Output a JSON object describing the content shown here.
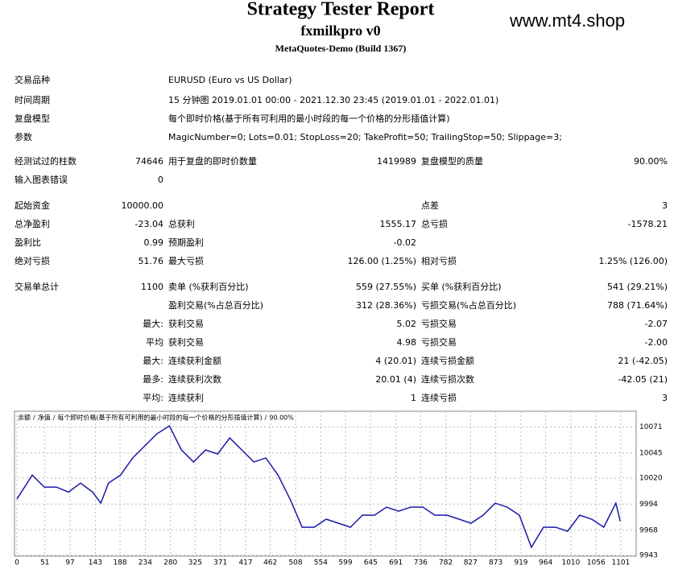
{
  "header": {
    "title": "Strategy Tester Report",
    "subtitle": "fxmilkpro v0",
    "build": "MetaQuotes-Demo (Build 1367)",
    "watermark": "www.mt4.shop"
  },
  "summary": {
    "rows": [
      {
        "label": "交易品种",
        "text": "EURUSD (Euro vs US Dollar)"
      },
      {
        "label": "时间周期",
        "text": "15 分钟图 2019.01.01 00:00 - 2021.12.30 23:45 (2019.01.01 - 2022.01.01)"
      },
      {
        "label": "复盘模型",
        "text": "每个即时价格(基于所有可利用的最小时段的每一个价格的分形插值计算)"
      },
      {
        "label": "参数",
        "text": "MagicNumber=0; Lots=0.01; StopLoss=20; TakeProfit=50; TrailingStop=50; Slippage=3;"
      }
    ]
  },
  "stats": {
    "rows": [
      [
        "经测试过的柱数",
        "74646",
        "用于复盘的即时价数量",
        "1419989",
        "复盘模型的质量",
        "90.00%"
      ],
      [
        "输入图表错误",
        "0",
        null,
        null,
        null,
        null
      ],
      [
        "起始资金",
        "10000.00",
        null,
        null,
        "点差",
        "3"
      ],
      [
        "总净盈利",
        "-23.04",
        "总获利",
        "1555.17",
        "总亏损",
        "-1578.21"
      ],
      [
        "盈利比",
        "0.99",
        "预期盈利",
        "-0.02",
        null,
        null
      ],
      [
        "绝对亏损",
        "51.76",
        "最大亏损",
        "126.00 (1.25%)",
        "相对亏损",
        "1.25% (126.00)"
      ],
      [
        "交易单总计",
        "1100",
        "卖单 (%获利百分比)",
        "559 (27.55%)",
        "买单 (%获利百分比)",
        "541 (29.21%)"
      ],
      [
        null,
        null,
        "盈利交易(%占总百分比)",
        "312 (28.36%)",
        "亏损交易(%占总百分比)",
        "788 (71.64%)"
      ],
      [
        null,
        "最大:",
        "获利交易",
        "5.02",
        "亏损交易",
        "-2.07"
      ],
      [
        null,
        "平均",
        "获利交易",
        "4.98",
        "亏损交易",
        "-2.00"
      ],
      [
        null,
        "最大:",
        "连续获利金额",
        "4 (20.01)",
        "连续亏损金额",
        "21 (-42.05)"
      ],
      [
        null,
        "最多:",
        "连续获利次数",
        "20.01 (4)",
        "连续亏损次数",
        "-42.05 (21)"
      ],
      [
        null,
        "平均:",
        "连续获利",
        "1",
        "连续亏损",
        "3"
      ]
    ]
  },
  "chart_data": {
    "type": "line",
    "legend": [
      {
        "text": "余额",
        "color": "#1f3fbf"
      },
      {
        "text": "净值",
        "color": "#1a9a1a"
      }
    ],
    "legend_separator": "/",
    "model": "每个即时价格(基于所有可利用的最小时段的每一个价格的分形插值计算)",
    "quality": "90.00%",
    "color": "#1a1aa8",
    "x": [
      0,
      28,
      50,
      72,
      94,
      116,
      138,
      153,
      167,
      189,
      211,
      233,
      255,
      278,
      300,
      322,
      344,
      366,
      388,
      410,
      432,
      454,
      476,
      498,
      520,
      542,
      564,
      586,
      608,
      630,
      652,
      674,
      696,
      718,
      740,
      762,
      784,
      806,
      828,
      850,
      872,
      894,
      916,
      938,
      960,
      982,
      1004,
      1026,
      1048,
      1070,
      1092,
      1100
    ],
    "values": [
      9999,
      10023,
      10011,
      10011,
      10006,
      10015,
      10006,
      9995,
      10015,
      10023,
      10040,
      10052,
      10064,
      10072,
      10048,
      10036,
      10048,
      10044,
      10060,
      10048,
      10036,
      10040,
      10023,
      9999,
      9971,
      9971,
      9979,
      9975,
      9971,
      9983,
      9983,
      9991,
      9987,
      9991,
      9991,
      9983,
      9983,
      9979,
      9975,
      9983,
      9995,
      9991,
      9983,
      9951,
      9971,
      9971,
      9967,
      9983,
      9979,
      9971,
      9995,
      9977
    ],
    "xlim": [
      0,
      1129
    ],
    "ylim": [
      9943,
      10085
    ],
    "xticks": [
      0,
      51,
      97,
      143,
      188,
      234,
      280,
      325,
      371,
      417,
      462,
      508,
      554,
      599,
      645,
      691,
      736,
      782,
      827,
      873,
      919,
      964,
      1010,
      1056,
      1101
    ],
    "yticks": [
      10071,
      10045,
      10020,
      9994,
      9968,
      9943
    ],
    "grid": true
  }
}
